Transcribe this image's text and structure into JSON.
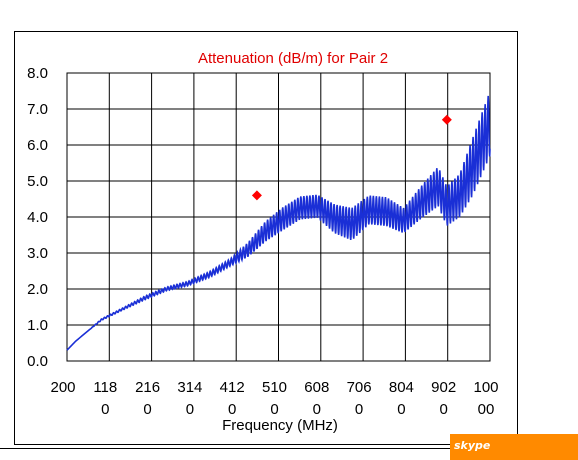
{
  "chart_data": {
    "type": "line",
    "title": "Attenuation (dB/m)  for Pair 2",
    "xlabel": "Frequency (MHz)",
    "ylabel": "",
    "ylim": [
      0,
      8
    ],
    "yticks": [
      "0.0",
      "1.0",
      "2.0",
      "3.0",
      "4.0",
      "5.0",
      "6.0",
      "7.0",
      "8.0"
    ],
    "xticks": [
      {
        "line1": "200",
        "line2": ""
      },
      {
        "line1": "118",
        "line2": "0"
      },
      {
        "line1": "216",
        "line2": "0"
      },
      {
        "line1": "314",
        "line2": "0"
      },
      {
        "line1": "412",
        "line2": "0"
      },
      {
        "line1": "510",
        "line2": "0"
      },
      {
        "line1": "608",
        "line2": "0"
      },
      {
        "line1": "706",
        "line2": "0"
      },
      {
        "line1": "804",
        "line2": "0"
      },
      {
        "line1": "902",
        "line2": "0"
      },
      {
        "line1": "100",
        "line2": "00"
      }
    ],
    "xlim": [
      200,
      10000
    ],
    "grid": true,
    "series": [
      {
        "color": "#1a2fd6",
        "x": [
          200,
          400,
          700,
          1000,
          1500,
          2000,
          2500,
          3000,
          3500,
          4000,
          4400,
          4800,
          5200,
          5600,
          6000,
          6400,
          6800,
          7200,
          7600,
          8000,
          8400,
          8800,
          9000,
          9300,
          9600,
          10000
        ],
        "y": [
          0.3,
          0.55,
          0.85,
          1.15,
          1.45,
          1.75,
          2.0,
          2.15,
          2.4,
          2.75,
          3.1,
          3.6,
          3.95,
          4.25,
          4.3,
          3.95,
          3.8,
          4.2,
          4.15,
          3.9,
          4.4,
          4.85,
          4.3,
          4.6,
          5.4,
          6.6
        ],
        "ripple": [
          0,
          0,
          0,
          0.02,
          0.03,
          0.05,
          0.05,
          0.06,
          0.08,
          0.1,
          0.2,
          0.28,
          0.32,
          0.32,
          0.32,
          0.4,
          0.45,
          0.4,
          0.4,
          0.35,
          0.45,
          0.55,
          0.55,
          0.6,
          0.8,
          0.9
        ]
      },
      {
        "type": "scatter",
        "color": "#ff0000",
        "marker": "diamond",
        "x": [
          4600,
          9000
        ],
        "y": [
          4.6,
          6.7
        ]
      }
    ]
  },
  "badge": {
    "logo": "skype",
    "color": "#ff8a00"
  }
}
